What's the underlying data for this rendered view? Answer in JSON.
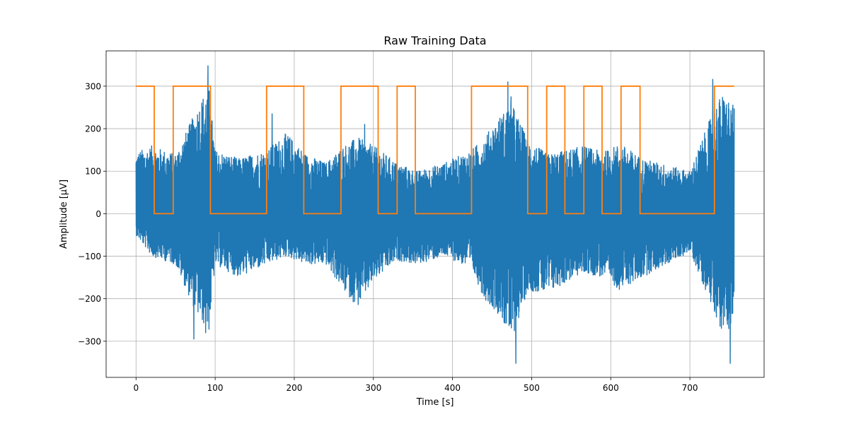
{
  "chart_data": {
    "type": "line",
    "title": "Raw Training Data",
    "xlabel": "Time [s]",
    "ylabel": "Amplitude [µV]",
    "xlim": [
      -37.8,
      793.8
    ],
    "ylim": [
      -385,
      383
    ],
    "xticks": [
      0,
      100,
      200,
      300,
      400,
      500,
      600,
      700
    ],
    "yticks": [
      -300,
      -200,
      -100,
      0,
      100,
      200,
      300
    ],
    "ytick_labels": [
      "−300",
      "−200",
      "−100",
      "0",
      "100",
      "200",
      "300"
    ],
    "grid": true,
    "legend": "none",
    "series": [
      {
        "color": "#1f77b4",
        "kind": "raw-signal",
        "x_range": [
          0,
          756
        ],
        "envelope": {
          "x": [
            0,
            20,
            50,
            75,
            85,
            92,
            100,
            130,
            165,
            190,
            215,
            240,
            262,
            280,
            300,
            330,
            355,
            390,
            424,
            440,
            460,
            475,
            495,
            520,
            545,
            565,
            590,
            612,
            640,
            700,
            731,
            740,
            750,
            756
          ],
          "upper": [
            145,
            160,
            140,
            240,
            280,
            300,
            150,
            130,
            150,
            190,
            140,
            120,
            160,
            180,
            160,
            120,
            100,
            120,
            150,
            180,
            230,
            260,
            175,
            140,
            150,
            160,
            145,
            165,
            130,
            100,
            250,
            280,
            270,
            250
          ],
          "lower": [
            -50,
            -100,
            -120,
            -230,
            -260,
            -280,
            -120,
            -150,
            -120,
            -100,
            -120,
            -120,
            -180,
            -220,
            -160,
            -110,
            -120,
            -100,
            -130,
            -200,
            -240,
            -300,
            -180,
            -190,
            -160,
            -140,
            -150,
            -180,
            -150,
            -90,
            -230,
            -280,
            -270,
            -250
          ]
        },
        "peaks": [
          {
            "x": 91,
            "y": 348
          },
          {
            "x": 88,
            "y": -280
          },
          {
            "x": 480,
            "y": -352
          },
          {
            "x": 751,
            "y": -352
          },
          {
            "x": 729,
            "y": 316
          },
          {
            "x": 470,
            "y": 310
          },
          {
            "x": 474,
            "y": 275
          },
          {
            "x": 289,
            "y": 210
          },
          {
            "x": 172,
            "y": 235
          },
          {
            "x": 73,
            "y": -295
          }
        ]
      },
      {
        "color": "#ff7f0e",
        "kind": "label-step",
        "x": [
          0,
          23,
          23,
          47,
          47,
          94,
          94,
          165,
          165,
          212,
          212,
          259,
          259,
          306,
          306,
          330,
          330,
          353,
          353,
          424,
          424,
          495,
          495,
          519,
          519,
          542,
          542,
          566,
          566,
          589,
          589,
          613,
          613,
          637,
          637,
          731,
          731,
          756
        ],
        "values": [
          300,
          300,
          0,
          0,
          300,
          300,
          0,
          0,
          300,
          300,
          0,
          0,
          300,
          300,
          0,
          0,
          300,
          300,
          0,
          0,
          300,
          300,
          0,
          0,
          300,
          300,
          0,
          0,
          300,
          300,
          0,
          0,
          300,
          300,
          0,
          0,
          300,
          300
        ]
      }
    ]
  }
}
